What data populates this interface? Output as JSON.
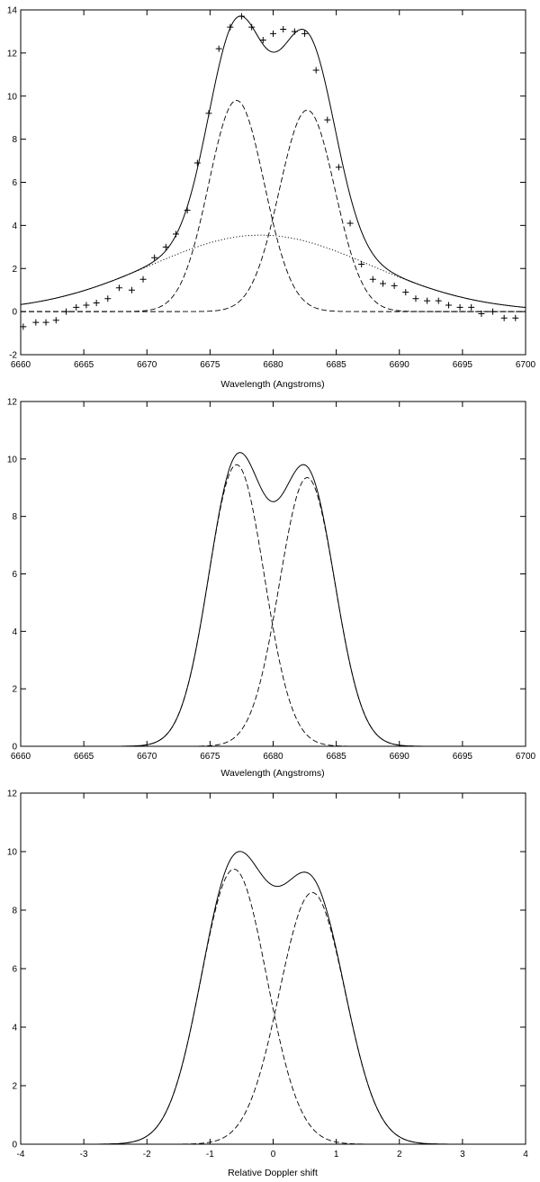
{
  "chart_data": [
    {
      "type": "line",
      "xlabel": "Wavelength (Angstroms)",
      "ylabel": "",
      "xlim": [
        6660,
        6700
      ],
      "ylim": [
        -2,
        14
      ],
      "xticks": [
        "6660",
        "6665",
        "6670",
        "6675",
        "6680",
        "6685",
        "6690",
        "6695",
        "6700"
      ],
      "yticks": [
        "-2",
        "0",
        "2",
        "4",
        "6",
        "8",
        "10",
        "12",
        "14"
      ],
      "grid": false,
      "components": [
        {
          "style": "solid",
          "role": "total"
        },
        {
          "style": "dashed",
          "amplitude": 9.8,
          "center": 6677.1,
          "sigma": 2.2
        },
        {
          "style": "dashed",
          "amplitude": 9.35,
          "center": 6682.7,
          "sigma": 2.2
        },
        {
          "style": "dotted",
          "amplitude": 3.55,
          "center": 6679.0,
          "sigma": 8.7
        }
      ],
      "points": {
        "marker": "+",
        "x": [
          6660.2,
          6661.2,
          6662.0,
          6662.8,
          6663.6,
          6664.4,
          6665.2,
          6666.0,
          6666.9,
          6667.8,
          6668.8,
          6669.7,
          6670.6,
          6671.5,
          6672.3,
          6673.2,
          6674.0,
          6674.9,
          6675.7,
          6676.6,
          6677.5,
          6678.3,
          6679.2,
          6680.0,
          6680.8,
          6681.7,
          6682.5,
          6683.4,
          6684.3,
          6685.2,
          6686.1,
          6687.0,
          6687.9,
          6688.7,
          6689.6,
          6690.5,
          6691.3,
          6692.2,
          6693.1,
          6693.9,
          6694.8,
          6695.7,
          6696.5,
          6697.4,
          6698.3,
          6699.2
        ],
        "y": [
          -0.7,
          -0.5,
          -0.5,
          -0.4,
          0.0,
          0.2,
          0.3,
          0.4,
          0.6,
          1.1,
          1.0,
          1.5,
          2.5,
          3.0,
          3.6,
          4.7,
          6.9,
          9.2,
          12.2,
          13.2,
          13.7,
          13.2,
          12.6,
          12.9,
          13.1,
          13.0,
          12.9,
          11.2,
          8.9,
          6.7,
          4.1,
          2.2,
          1.5,
          1.3,
          1.2,
          0.9,
          0.6,
          0.5,
          0.5,
          0.3,
          0.2,
          0.2,
          -0.1,
          0.0,
          -0.3,
          -0.3
        ]
      }
    },
    {
      "type": "line",
      "xlabel": "Wavelength (Angstroms)",
      "ylabel": "",
      "xlim": [
        6660,
        6700
      ],
      "ylim": [
        0,
        12
      ],
      "xticks": [
        "6660",
        "6665",
        "6670",
        "6675",
        "6680",
        "6685",
        "6690",
        "6695",
        "6700"
      ],
      "yticks": [
        "0",
        "2",
        "4",
        "6",
        "8",
        "10",
        "12"
      ],
      "grid": false,
      "components": [
        {
          "style": "solid",
          "role": "total"
        },
        {
          "style": "dashed",
          "amplitude": 9.8,
          "center": 6677.1,
          "sigma": 2.2
        },
        {
          "style": "dashed",
          "amplitude": 9.35,
          "center": 6682.7,
          "sigma": 2.2
        }
      ]
    },
    {
      "type": "line",
      "xlabel": "Relative Doppler shift",
      "ylabel": "",
      "xlim": [
        -4,
        4
      ],
      "ylim": [
        0,
        12
      ],
      "xticks": [
        "-4",
        "-3",
        "-2",
        "-1",
        "0",
        "1",
        "2",
        "3",
        "4"
      ],
      "yticks": [
        "0",
        "2",
        "4",
        "6",
        "8",
        "10",
        "12"
      ],
      "grid": false,
      "components": [
        {
          "style": "solid",
          "role": "total"
        },
        {
          "style": "dashed",
          "amplitude": 9.4,
          "center": -0.62,
          "sigma": 0.52
        },
        {
          "style": "dashed",
          "amplitude": 8.6,
          "center": 0.62,
          "sigma": 0.52
        }
      ]
    }
  ]
}
